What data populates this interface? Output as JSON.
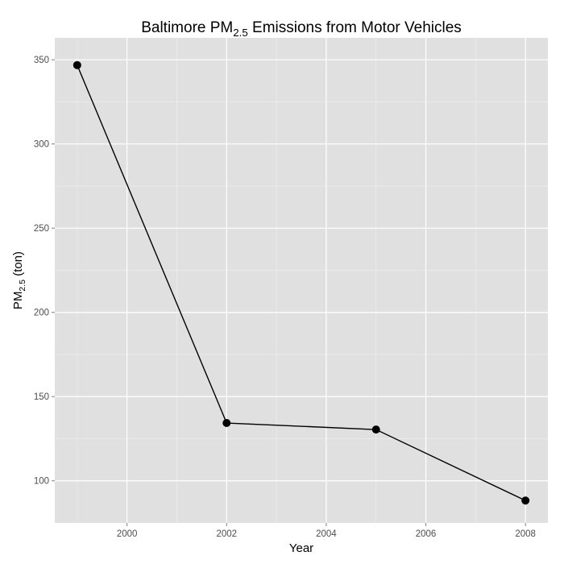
{
  "chart_data": {
    "type": "line",
    "title": {
      "prefix": "Baltimore PM",
      "subscript": "2.5",
      "suffix": " Emissions from Motor Vehicles"
    },
    "xlabel": "Year",
    "ylabel": {
      "prefix": "PM",
      "subscript": "2.5",
      "suffix": " (ton)"
    },
    "x": [
      1999,
      2002,
      2005,
      2008
    ],
    "series": [
      {
        "values": [
          346.82,
          134.31,
          130.43,
          88.28
        ]
      }
    ],
    "xlim": [
      1998.55,
      2008.45
    ],
    "ylim": [
      75,
      363
    ],
    "xticks": [
      2000,
      2002,
      2004,
      2006,
      2008
    ],
    "xtick_labels": [
      "2000",
      "2002",
      "2004",
      "2006",
      "2008"
    ],
    "yticks": [
      100,
      150,
      200,
      250,
      300,
      350
    ],
    "ytick_labels": [
      "100",
      "150",
      "200",
      "250",
      "300",
      "350"
    ],
    "grid": true,
    "colors": {
      "panel_background": "#e0e0e0",
      "grid_major": "#ffffff",
      "grid_minor": "#efefef",
      "line": "#000000",
      "point": "#000000",
      "tick_label": "#4d4d4d"
    }
  }
}
